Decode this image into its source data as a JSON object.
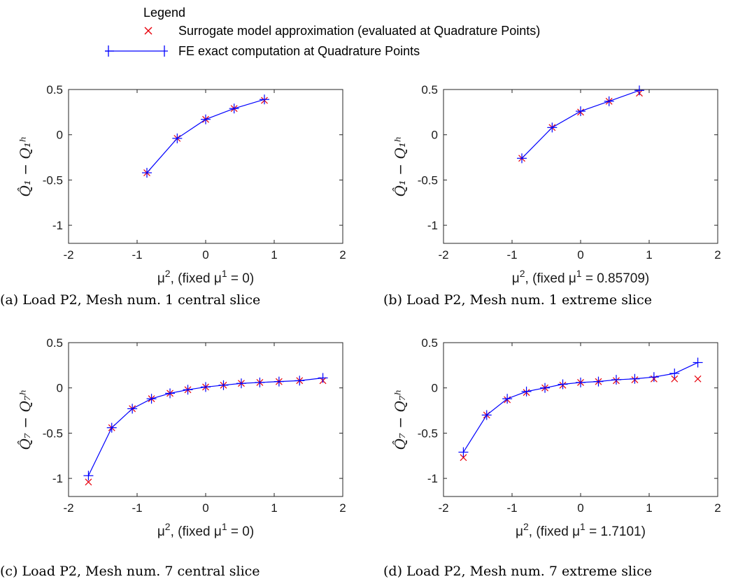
{
  "legend": {
    "title": "Legend",
    "entries": [
      {
        "label": "Surrogate model approximation (evaluated at Quadrature Points)",
        "marker": "x",
        "color": "#e8000b"
      },
      {
        "label": "FE exact computation at Quadrature Points",
        "marker": "+",
        "color": "#0000ff"
      }
    ]
  },
  "chart_data": [
    {
      "type": "line",
      "caption": "(a) Load P2, Mesh num. 1 central slice",
      "xlabel_prefix": "μ",
      "xlabel_sup": "2",
      "xlabel_mid": ", (fixed μ",
      "xlabel_sup2": "1",
      "xlabel_suffix": " = 0)",
      "ylabel": "Q̂₁ − Q₁ʰ",
      "xlim": [
        -2,
        2
      ],
      "ylim": [
        -1.2,
        0.5
      ],
      "xticks": [
        -2,
        -1,
        0,
        1,
        2
      ],
      "yticks": [
        -1,
        -0.5,
        0,
        0.5
      ],
      "xtick_labels": [
        "-2",
        "-1",
        "0",
        "1",
        "2"
      ],
      "ytick_labels": [
        "-1",
        "-0.5",
        "0",
        "0.5"
      ],
      "grid": false,
      "series": [
        {
          "kind": "surrogate",
          "marker": "x",
          "color": "#e8000b",
          "x": [
            -0.857,
            -0.415,
            0,
            0.415,
            0.857
          ],
          "y": [
            -0.42,
            -0.04,
            0.17,
            0.29,
            0.38
          ]
        },
        {
          "kind": "fe",
          "marker": "+",
          "color": "#0000ff",
          "x": [
            -0.857,
            -0.415,
            0,
            0.415,
            0.857
          ],
          "y": [
            -0.42,
            -0.04,
            0.17,
            0.29,
            0.39
          ]
        }
      ]
    },
    {
      "type": "line",
      "caption": "(b) Load P2, Mesh num. 1 extreme slice",
      "xlabel_prefix": "μ",
      "xlabel_sup": "2",
      "xlabel_mid": ", (fixed μ",
      "xlabel_sup2": "1",
      "xlabel_suffix": " = 0.85709)",
      "ylabel": "Q̂₁ − Q₁ʰ",
      "xlim": [
        -2,
        2
      ],
      "ylim": [
        -1.2,
        0.5
      ],
      "xticks": [
        -2,
        -1,
        0,
        1,
        2
      ],
      "yticks": [
        -1,
        -0.5,
        0,
        0.5
      ],
      "xtick_labels": [
        "-2",
        "-1",
        "0",
        "1",
        "2"
      ],
      "ytick_labels": [
        "-1",
        "-0.5",
        "0",
        "0.5"
      ],
      "grid": false,
      "series": [
        {
          "kind": "surrogate",
          "marker": "x",
          "color": "#e8000b",
          "x": [
            -0.857,
            -0.415,
            0,
            0.415,
            0.857
          ],
          "y": [
            -0.26,
            0.08,
            0.25,
            0.37,
            0.46
          ]
        },
        {
          "kind": "fe",
          "marker": "+",
          "color": "#0000ff",
          "x": [
            -0.857,
            -0.415,
            0,
            0.415,
            0.857
          ],
          "y": [
            -0.26,
            0.08,
            0.26,
            0.37,
            0.49
          ]
        }
      ]
    },
    {
      "type": "line",
      "caption": "(c) Load P2, Mesh num. 7 central slice",
      "xlabel_prefix": "μ",
      "xlabel_sup": "2",
      "xlabel_mid": ", (fixed μ",
      "xlabel_sup2": "1",
      "xlabel_suffix": " = 0)",
      "ylabel": "Q̂₇ − Q₇ʰ",
      "xlim": [
        -2,
        2
      ],
      "ylim": [
        -1.2,
        0.5
      ],
      "xticks": [
        -2,
        -1,
        0,
        1,
        2
      ],
      "yticks": [
        -1,
        -0.5,
        0,
        0.5
      ],
      "xtick_labels": [
        "-2",
        "-1",
        "0",
        "1",
        "2"
      ],
      "ytick_labels": [
        "-1",
        "-0.5",
        "0",
        "0.5"
      ],
      "grid": false,
      "series": [
        {
          "kind": "surrogate",
          "marker": "x",
          "color": "#e8000b",
          "x": [
            -1.71,
            -1.37,
            -1.07,
            -0.79,
            -0.52,
            -0.26,
            0,
            0.26,
            0.52,
            0.79,
            1.07,
            1.37,
            1.71
          ],
          "y": [
            -1.04,
            -0.44,
            -0.23,
            -0.12,
            -0.06,
            -0.02,
            0.01,
            0.03,
            0.05,
            0.06,
            0.07,
            0.08,
            0.08
          ]
        },
        {
          "kind": "fe",
          "marker": "+",
          "color": "#0000ff",
          "x": [
            -1.71,
            -1.37,
            -1.07,
            -0.79,
            -0.52,
            -0.26,
            0,
            0.26,
            0.52,
            0.79,
            1.07,
            1.37,
            1.71
          ],
          "y": [
            -0.97,
            -0.44,
            -0.23,
            -0.12,
            -0.06,
            -0.02,
            0.01,
            0.03,
            0.05,
            0.06,
            0.07,
            0.08,
            0.11
          ]
        }
      ]
    },
    {
      "type": "line",
      "caption": "(d) Load P2, Mesh num. 7 extreme slice",
      "xlabel_prefix": "μ",
      "xlabel_sup": "2",
      "xlabel_mid": ", (fixed μ",
      "xlabel_sup2": "1",
      "xlabel_suffix": " = 1.7101)",
      "ylabel": "Q̂₇ − Q₇ʰ",
      "xlim": [
        -2,
        2
      ],
      "ylim": [
        -1.2,
        0.5
      ],
      "xticks": [
        -2,
        -1,
        0,
        1,
        2
      ],
      "yticks": [
        -1,
        -0.5,
        0,
        0.5
      ],
      "xtick_labels": [
        "-2",
        "-1",
        "0",
        "1",
        "2"
      ],
      "ytick_labels": [
        "-1",
        "-0.5",
        "0",
        "0.5"
      ],
      "grid": false,
      "series": [
        {
          "kind": "surrogate",
          "marker": "x",
          "color": "#e8000b",
          "x": [
            -1.71,
            -1.37,
            -1.07,
            -0.79,
            -0.52,
            -0.26,
            0,
            0.26,
            0.52,
            0.79,
            1.07,
            1.37,
            1.71
          ],
          "y": [
            -0.77,
            -0.3,
            -0.13,
            -0.05,
            0.0,
            0.03,
            0.06,
            0.07,
            0.08,
            0.09,
            0.1,
            0.1,
            0.1
          ]
        },
        {
          "kind": "fe",
          "marker": "+",
          "color": "#0000ff",
          "x": [
            -1.71,
            -1.37,
            -1.07,
            -0.79,
            -0.52,
            -0.26,
            0,
            0.26,
            0.52,
            0.79,
            1.07,
            1.37,
            1.71
          ],
          "y": [
            -0.71,
            -0.3,
            -0.12,
            -0.04,
            0.0,
            0.04,
            0.06,
            0.07,
            0.09,
            0.1,
            0.12,
            0.16,
            0.28
          ]
        }
      ]
    }
  ]
}
